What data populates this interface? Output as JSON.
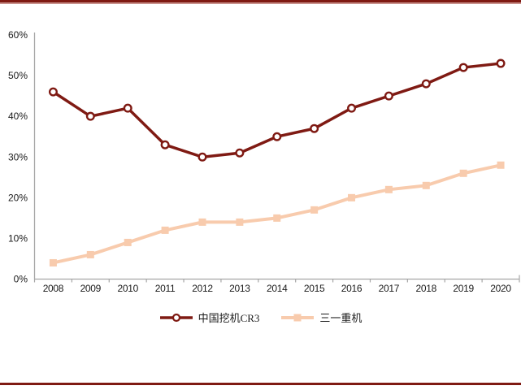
{
  "decorations": {
    "top_rule_dark": "#7f1a13",
    "top_rule_light": "#c9918c",
    "bottom_rule": "#7f1a13"
  },
  "chart_data": {
    "type": "line",
    "categories": [
      "2008",
      "2009",
      "2010",
      "2011",
      "2012",
      "2013",
      "2014",
      "2015",
      "2016",
      "2017",
      "2018",
      "2019",
      "2020"
    ],
    "series": [
      {
        "name": "中国挖机CR3",
        "values": [
          46,
          40,
          42,
          33,
          30,
          31,
          35,
          37,
          42,
          45,
          48,
          52,
          53
        ],
        "color": "#7f1a13",
        "marker": "open-circle",
        "line_width": 3.5
      },
      {
        "name": "三一重机",
        "values": [
          4,
          6,
          9,
          12,
          14,
          14,
          15,
          17,
          20,
          22,
          23,
          26,
          28
        ],
        "color": "#f8cbad",
        "marker": "filled-square",
        "line_width": 4
      }
    ],
    "title": "",
    "xlabel": "",
    "ylabel": "",
    "ylim": [
      0,
      60
    ],
    "ytick_step": 10,
    "ytick_labels": [
      "0%",
      "10%",
      "20%",
      "30%",
      "40%",
      "50%",
      "60%"
    ],
    "grid": false,
    "legend_position": "bottom",
    "axis_color": "#a6a6a6",
    "tick_label_color": "#1a1a1a"
  }
}
